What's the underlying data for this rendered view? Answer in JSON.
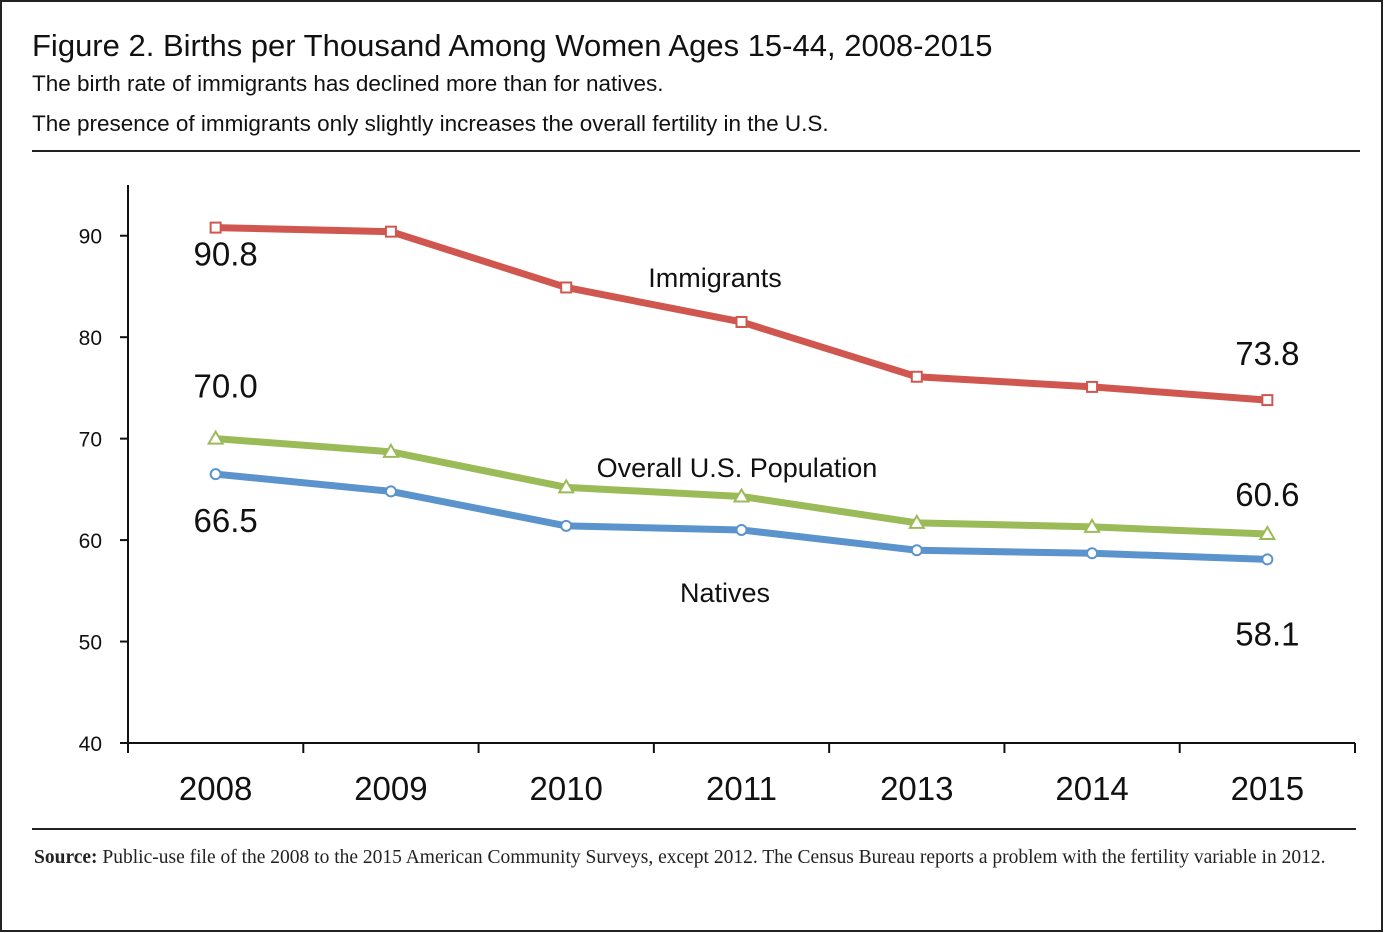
{
  "chart_data": {
    "type": "line",
    "title": "Figure 2. Births per Thousand Among Women Ages 15-44, 2008-2015",
    "subtitle": [
      "The birth rate of immigrants has declined more than for natives.",
      "The presence of immigrants only slightly increases the overall fertility in the U.S."
    ],
    "categories": [
      "2008",
      "2009",
      "2010",
      "2011",
      "2013",
      "2014",
      "2015"
    ],
    "series": [
      {
        "name": "Immigrants",
        "color": "#d0574f",
        "marker": "square",
        "values": [
          90.8,
          90.4,
          84.9,
          81.5,
          76.1,
          75.1,
          73.8
        ],
        "value_labels": [
          "90.8",
          null,
          null,
          null,
          null,
          null,
          "73.8"
        ]
      },
      {
        "name": "Overall U.S. Population",
        "color": "#9bbb59",
        "marker": "triangle",
        "values": [
          70.0,
          68.7,
          65.2,
          64.3,
          61.7,
          61.3,
          60.6
        ],
        "value_labels": [
          "70.0",
          null,
          null,
          null,
          null,
          null,
          "60.6"
        ]
      },
      {
        "name": "Natives",
        "color": "#5b93cc",
        "marker": "circle",
        "values": [
          66.5,
          64.8,
          61.4,
          61.0,
          59.0,
          58.7,
          58.1
        ],
        "value_labels": [
          "66.5",
          null,
          null,
          null,
          null,
          null,
          "58.1"
        ]
      }
    ],
    "ylim": [
      40,
      95
    ],
    "yticks": [
      40,
      50,
      60,
      70,
      80,
      90
    ],
    "source_label": "Source:",
    "source": "Public-use file of the 2008 to the 2015 American Community Surveys, except 2012. The Census Bureau reports a problem with the fertility variable in 2012."
  }
}
